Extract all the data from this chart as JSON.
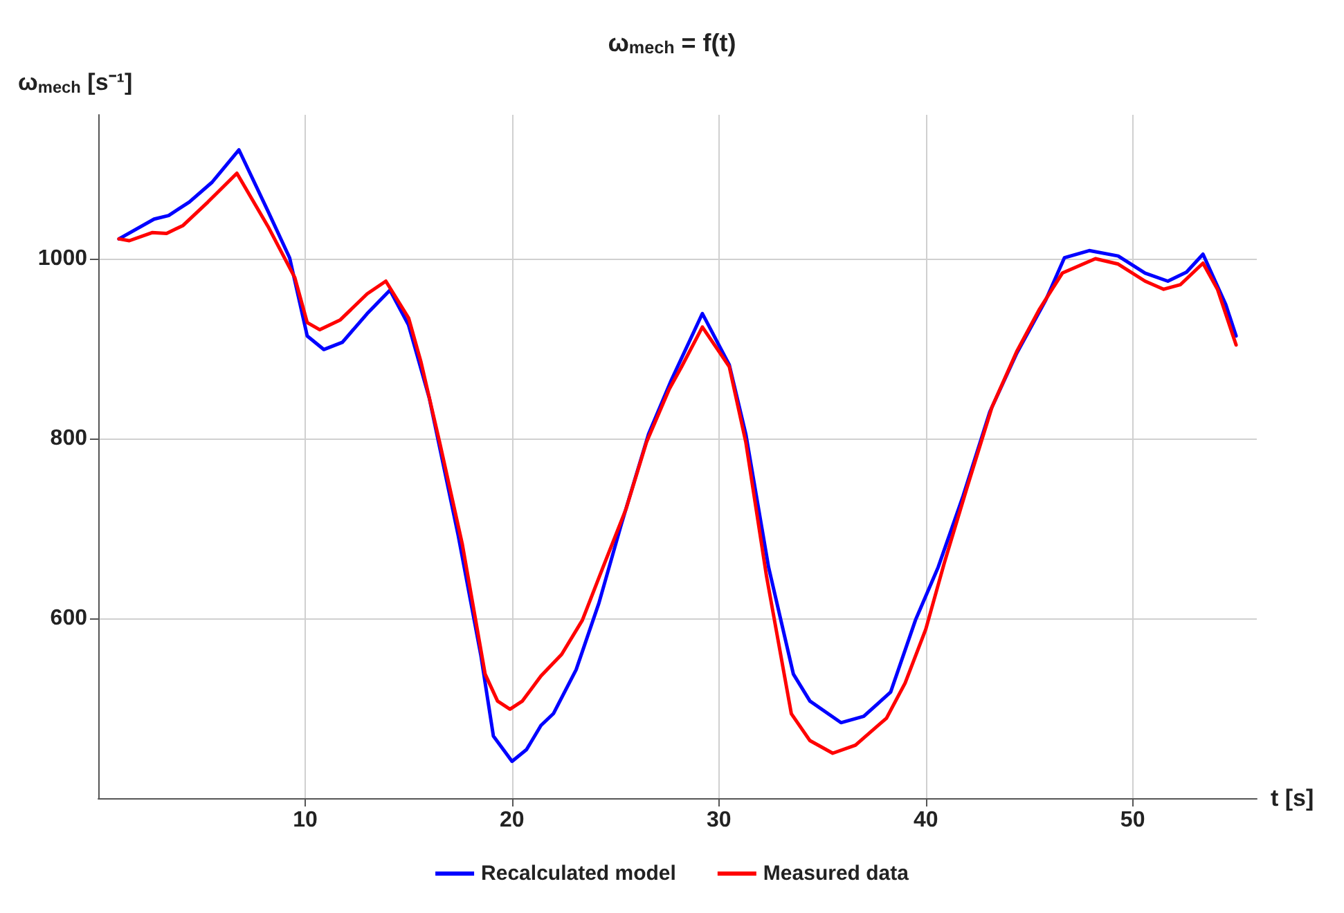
{
  "chart_data": {
    "type": "line",
    "title": "ω$_{mech}$ = f(t)",
    "xlabel": "t [s]",
    "ylabel": "ω$_{mech}$ [s⁻¹]",
    "xlim": [
      0,
      56
    ],
    "ylim": [
      400,
      1160
    ],
    "xticks": [
      10,
      20,
      30,
      40,
      50
    ],
    "yticks": [
      600,
      800,
      1000
    ],
    "grid": true,
    "legend": "bottom",
    "marker": "none",
    "line_style": "solid",
    "series": [
      {
        "name": "Recalculated model",
        "color": "#0000ff",
        "x": [
          1,
          2.7,
          3.4,
          4.4,
          5.5,
          6.8,
          8.2,
          9.25,
          10.1,
          10.9,
          11.8,
          13,
          14.1,
          15,
          16,
          17.4,
          18.5,
          19.1,
          20,
          20.7,
          21.4,
          22,
          23.1,
          24.2,
          25.3,
          26.6,
          27.7,
          29.2,
          30.5,
          31.3,
          32.4,
          33.6,
          34.4,
          35.9,
          37,
          38.3,
          39.5,
          40.6,
          41.8,
          43.1,
          44.4,
          45.8,
          46.7,
          47.9,
          49.3,
          50.6,
          51.7,
          52.6,
          53.4,
          54.5,
          55
        ],
        "values": [
          1022,
          1044,
          1048,
          1063,
          1085,
          1121,
          1053,
          1001,
          914,
          899,
          907,
          939,
          965,
          926,
          845,
          692,
          558,
          469,
          441,
          454,
          481,
          494,
          543,
          617,
          706,
          805,
          865,
          939,
          882,
          805,
          657,
          538,
          508,
          484,
          491,
          518,
          598,
          657,
          736,
          830,
          895,
          954,
          1001,
          1009,
          1003,
          984,
          975,
          985,
          1005,
          949,
          914
        ]
      },
      {
        "name": "Measured data",
        "color": "#ff0000",
        "x": [
          1,
          1.5,
          2.6,
          3.3,
          4.1,
          5.3,
          6.7,
          8.2,
          9.5,
          10.1,
          10.7,
          11.7,
          13,
          13.9,
          15,
          15.6,
          16.5,
          17.6,
          18.7,
          19.3,
          19.9,
          20.5,
          21.4,
          22.4,
          23.4,
          24.4,
          25.5,
          26.5,
          27.6,
          28.2,
          29.2,
          30.5,
          31.3,
          32.3,
          33.5,
          34.4,
          35.5,
          36.6,
          38.1,
          39,
          40,
          40.9,
          42,
          43.2,
          44.4,
          45.5,
          46.6,
          48.2,
          49.3,
          50.6,
          51.5,
          52.3,
          53.4,
          54.1,
          55
        ],
        "values": [
          1022,
          1020,
          1029,
          1028,
          1037,
          1063,
          1095,
          1036,
          979,
          929,
          921,
          932,
          961,
          975,
          934,
          885,
          796,
          682,
          538,
          508,
          499,
          508,
          536,
          560,
          598,
          657,
          721,
          796,
          855,
          880,
          924,
          880,
          796,
          647,
          494,
          464,
          450,
          459,
          489,
          528,
          588,
          662,
          746,
          835,
          897,
          944,
          984,
          1000,
          994,
          975,
          966,
          971,
          995,
          966,
          904
        ]
      }
    ]
  }
}
